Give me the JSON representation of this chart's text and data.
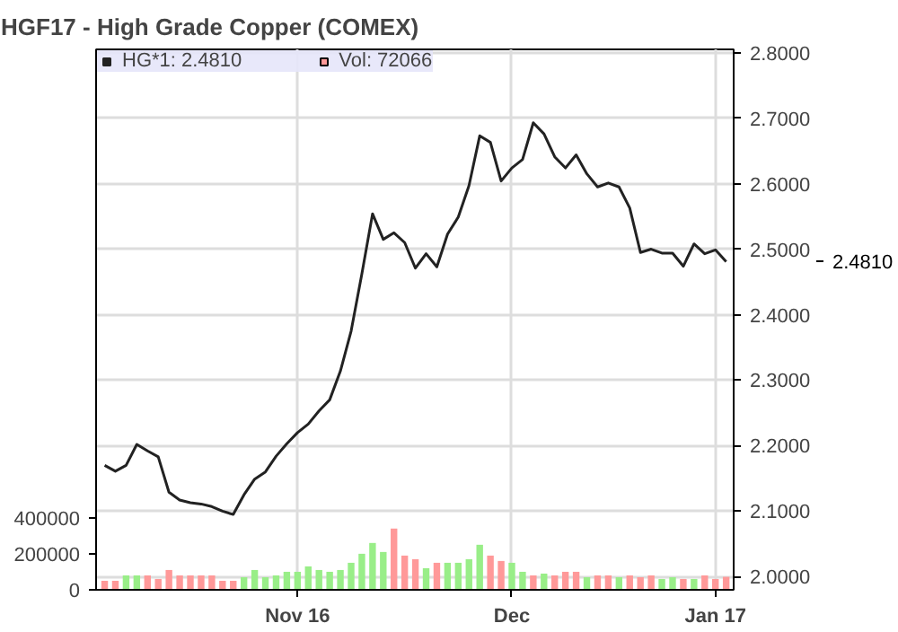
{
  "chart_data": {
    "type": "bar",
    "title": "HGF17 - High Grade Copper (COMEX)",
    "categories": [
      null,
      null,
      null,
      null,
      null,
      null,
      null,
      null,
      null,
      null,
      null,
      null,
      null,
      null,
      null,
      null,
      null,
      null,
      "Nov 16",
      null,
      null,
      null,
      null,
      null,
      null,
      null,
      null,
      null,
      null,
      null,
      null,
      null,
      null,
      null,
      null,
      null,
      null,
      null,
      "Dec",
      null,
      null,
      null,
      null,
      null,
      null,
      null,
      null,
      null,
      null,
      null,
      null,
      null,
      null,
      null,
      null,
      null,
      null,
      "Jan 17",
      null
    ],
    "ylim": [
      0,
      3000000
    ],
    "yticks": [
      0,
      200000,
      400000
    ],
    "y2lim": [
      1.98,
      2.805
    ],
    "y2ticks": [
      {
        "value": 2.0,
        "label": "2.0000"
      },
      {
        "value": 2.1,
        "label": "2.1000"
      },
      {
        "value": 2.2,
        "label": "2.2000"
      },
      {
        "value": 2.3,
        "label": "2.3000"
      },
      {
        "value": 2.4,
        "label": "2.4000"
      },
      {
        "value": 2.5,
        "label": "2.5000"
      },
      {
        "value": 2.6,
        "label": "2.6000"
      },
      {
        "value": 2.7,
        "label": "2.7000"
      },
      {
        "value": 2.8,
        "label": "2.8000"
      }
    ],
    "grid": true,
    "legend": "top left",
    "series": [
      {
        "name": "HG*1: 2.4810",
        "type": "line",
        "axis": "y2",
        "color": "#222222",
        "values": [
          2.17,
          2.161,
          2.17,
          2.202,
          2.192,
          2.183,
          2.129,
          2.117,
          2.113,
          2.111,
          2.107,
          2.1,
          2.095,
          2.125,
          2.149,
          2.16,
          2.184,
          2.203,
          2.22,
          2.233,
          2.253,
          2.27,
          2.314,
          2.375,
          2.462,
          2.554,
          2.515,
          2.525,
          2.51,
          2.471,
          2.493,
          2.473,
          2.523,
          2.549,
          2.597,
          2.673,
          2.663,
          2.604,
          2.624,
          2.637,
          2.693,
          2.676,
          2.641,
          2.624,
          2.644,
          2.615,
          2.595,
          2.601,
          2.595,
          2.563,
          2.495,
          2.5,
          2.494,
          2.494,
          2.474,
          2.508,
          2.493,
          2.499,
          2.481
        ]
      },
      {
        "name": "Vol: 72066",
        "color": "#ff9999",
        "values": [
          50000,
          50000,
          80000,
          80000,
          80000,
          60000,
          110000,
          80000,
          80000,
          80000,
          80000,
          50000,
          50000,
          70000,
          110000,
          70000,
          80000,
          100000,
          100000,
          130000,
          110000,
          100000,
          110000,
          150000,
          200000,
          260000,
          210000,
          340000,
          190000,
          170000,
          120000,
          150000,
          150000,
          150000,
          170000,
          250000,
          190000,
          160000,
          150000,
          100000,
          80000,
          90000,
          80000,
          100000,
          100000,
          70000,
          80000,
          80000,
          70000,
          80000,
          70000,
          80000,
          60000,
          70000,
          60000,
          60000,
          80000,
          60000,
          72066
        ],
        "colors": [
          "#ff9999",
          "#ff9999",
          "#99ee88",
          "#99ee88",
          "#ff9999",
          "#ff9999",
          "#ff9999",
          "#ff9999",
          "#ff9999",
          "#ff9999",
          "#ff9999",
          "#ff9999",
          "#ff9999",
          "#99ee88",
          "#99ee88",
          "#99ee88",
          "#99ee88",
          "#99ee88",
          "#99ee88",
          "#99ee88",
          "#99ee88",
          "#99ee88",
          "#99ee88",
          "#99ee88",
          "#99ee88",
          "#99ee88",
          "#99ee88",
          "#ff9999",
          "#ff9999",
          "#ff9999",
          "#99ee88",
          "#ff9999",
          "#99ee88",
          "#99ee88",
          "#99ee88",
          "#99ee88",
          "#ff9999",
          "#ff9999",
          "#99ee88",
          "#99ee88",
          "#ff9999",
          "#99ee88",
          "#ff9999",
          "#ff9999",
          "#ff9999",
          "#99ee88",
          "#ff9999",
          "#ff9999",
          "#99ee88",
          "#ff9999",
          "#ff9999",
          "#ff9999",
          "#99ee88",
          "#99ee88",
          "#ff9999",
          "#99ee88",
          "#ff9999",
          "#ff9999",
          "#ff9999"
        ]
      }
    ],
    "annotations": [
      "2.4810"
    ]
  }
}
